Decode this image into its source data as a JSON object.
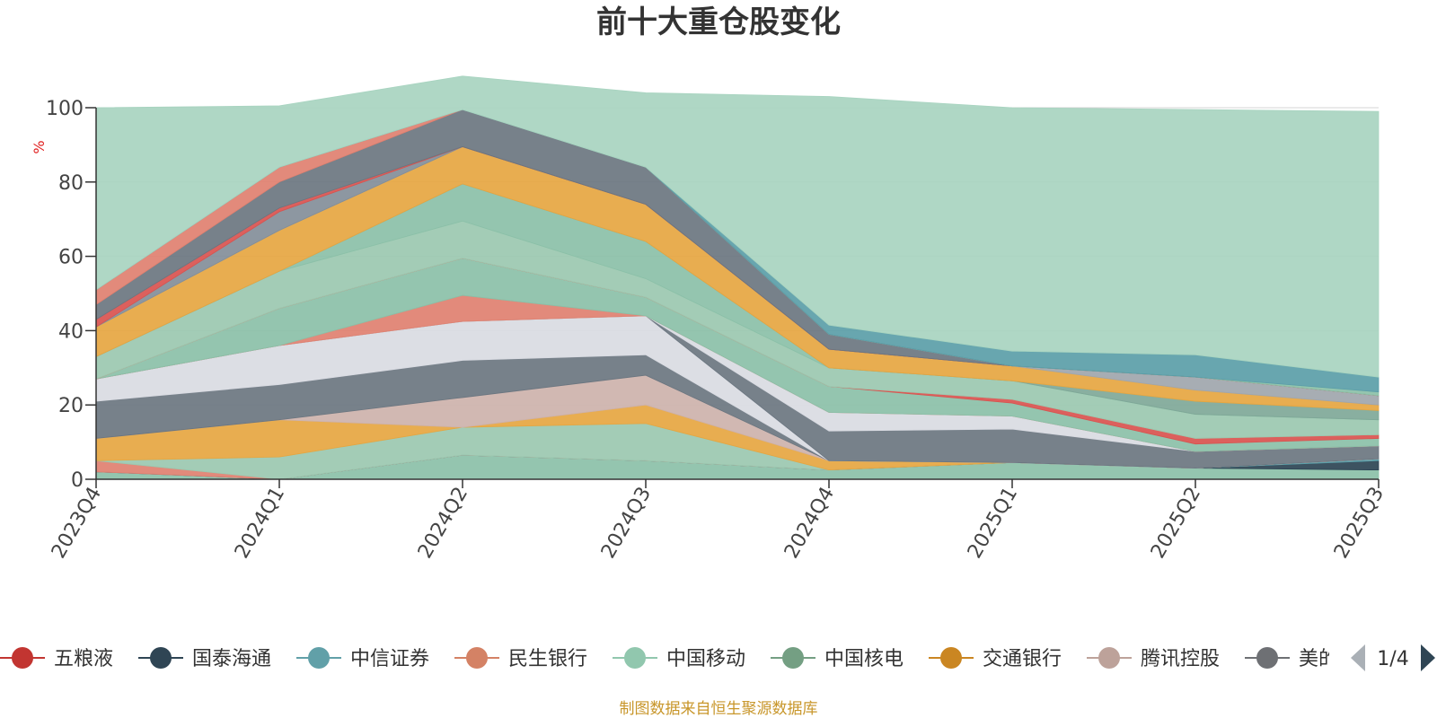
{
  "title": "前十大重仓股变化",
  "source": "制图数据来自恒生聚源数据库",
  "legend_page": "1/4",
  "chart_data": {
    "type": "area",
    "stacked": true,
    "title": "前十大重仓股变化",
    "ylabel": "%",
    "ylim": [
      0,
      100
    ],
    "yticks": [
      0,
      20,
      40,
      60,
      80,
      100
    ],
    "grid": true,
    "legend_position": "bottom",
    "categories": [
      "2023Q4",
      "2024Q1",
      "2024Q2",
      "2024Q3",
      "2024Q4",
      "2025Q1",
      "2025Q2",
      "2025Q3"
    ],
    "series": [
      {
        "color": "#8bc0a8",
        "values": [
          2,
          0,
          6.5,
          5,
          2.5,
          4.5,
          3,
          2.5
        ]
      },
      {
        "color": "#2d4454",
        "values": [
          0,
          0,
          0,
          0,
          0,
          0,
          0,
          2.5
        ]
      },
      {
        "color": "#5b9ea8",
        "values": [
          0,
          0,
          0,
          0,
          0,
          0,
          0,
          0.5
        ]
      },
      {
        "color": "#e08070",
        "values": [
          3,
          0,
          0,
          0,
          0,
          0,
          0,
          0
        ]
      },
      {
        "color": "#9bc8b0",
        "values": [
          0,
          6,
          7.5,
          10,
          0,
          0,
          0,
          0
        ]
      },
      {
        "color": "#e6a641",
        "values": [
          6,
          10,
          0,
          5,
          2.5,
          0,
          0,
          0
        ]
      },
      {
        "color": "#cdb2ab",
        "values": [
          0,
          0,
          8,
          8,
          0,
          0,
          0,
          0
        ]
      },
      {
        "color": "#6b7680",
        "values": [
          10,
          9.5,
          10,
          5.5,
          0,
          0,
          0,
          0
        ]
      },
      {
        "color": "#d9dbe2",
        "values": [
          6,
          10.5,
          10.5,
          10.5,
          0,
          0,
          0,
          0
        ]
      },
      {
        "color": "#6b7680",
        "values": [
          0,
          0,
          0,
          0,
          8,
          9,
          4.5,
          3.5
        ]
      },
      {
        "color": "#d9dbe2",
        "values": [
          0,
          0,
          0,
          0,
          5,
          3.5,
          0,
          0
        ]
      },
      {
        "color": "#e08070",
        "values": [
          0,
          0,
          7,
          0,
          0,
          0,
          0,
          0
        ]
      },
      {
        "color": "#8bc0a8",
        "values": [
          0,
          10,
          10,
          5,
          7,
          3.5,
          2,
          2
        ]
      },
      {
        "color": "#d9534f",
        "values": [
          0,
          0,
          0,
          0,
          0,
          1,
          1.5,
          1
        ]
      },
      {
        "color": "#e08070",
        "values": [
          0,
          0,
          0,
          0,
          0,
          0,
          0,
          0
        ]
      },
      {
        "color": "#9bc8b0",
        "values": [
          6,
          10,
          10,
          5,
          5,
          5,
          6.5,
          4
        ]
      },
      {
        "color": "#8bc0a8",
        "values": [
          0,
          0,
          10,
          10,
          0,
          0,
          0,
          0
        ]
      },
      {
        "color": "#7fa898",
        "values": [
          0,
          0,
          0,
          0,
          0,
          0,
          3.5,
          2.5
        ]
      },
      {
        "color": "#e6a641",
        "values": [
          8,
          11,
          10,
          10,
          5,
          4,
          3,
          1.5
        ]
      },
      {
        "color": "#a0a6ad",
        "values": [
          0,
          0,
          0,
          0,
          0,
          0,
          3.5,
          2.5
        ]
      },
      {
        "color": "#838e99",
        "values": [
          0,
          5,
          0,
          0,
          0,
          0,
          0,
          0
        ]
      },
      {
        "color": "#d9534f",
        "values": [
          2,
          1,
          0,
          0,
          0,
          0,
          0,
          0
        ]
      },
      {
        "color": "#6b7680",
        "values": [
          4,
          7,
          10,
          10,
          4,
          0,
          0,
          0
        ]
      },
      {
        "color": "#e08070",
        "values": [
          4,
          4,
          0,
          0,
          0,
          0,
          0,
          0
        ]
      },
      {
        "color": "#8bc0a8",
        "values": [
          0,
          0,
          0,
          0,
          0,
          0,
          0,
          1
        ]
      },
      {
        "color": "#5b9ea8",
        "values": [
          0,
          0,
          0,
          0,
          2.5,
          4,
          6,
          4
        ]
      },
      {
        "color": "#a8d4c0",
        "values": [
          49,
          16.5,
          9,
          20,
          61.5,
          65.5,
          66,
          71.5
        ]
      }
    ],
    "legend": [
      {
        "name": "五粮液",
        "color": "#c23531"
      },
      {
        "name": "国泰海通",
        "color": "#2f4554"
      },
      {
        "name": "中信证券",
        "color": "#61a0a8"
      },
      {
        "name": "民生银行",
        "color": "#d48265"
      },
      {
        "name": "中国移动",
        "color": "#91c7ae"
      },
      {
        "name": "中国核电",
        "color": "#749f83"
      },
      {
        "name": "交通银行",
        "color": "#ca8622"
      },
      {
        "name": "腾讯控股",
        "color": "#bda29a"
      },
      {
        "name": "美的集团",
        "color": "#6e7074"
      }
    ]
  }
}
